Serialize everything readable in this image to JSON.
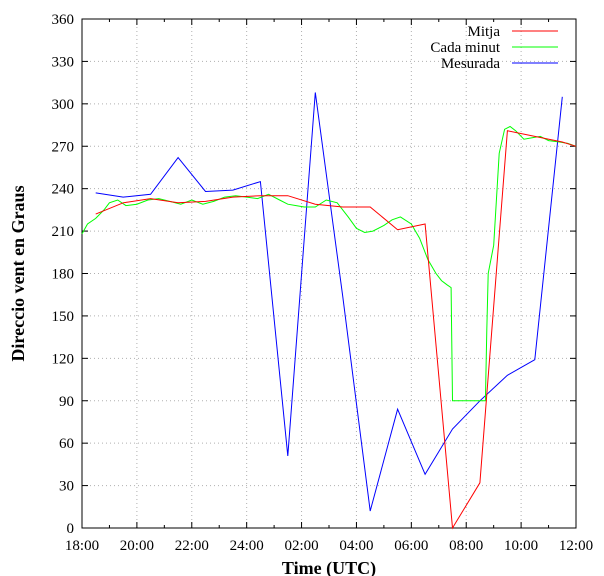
{
  "chart_data": {
    "type": "line",
    "title": "",
    "xlabel": "Time (UTC)",
    "ylabel": "Direccio vent en Graus",
    "x_tick_labels": [
      "18:00",
      "20:00",
      "22:00",
      "24:00",
      "02:00",
      "04:00",
      "06:00",
      "08:00",
      "10:00",
      "12:00"
    ],
    "y_ticks": [
      0,
      30,
      60,
      90,
      120,
      150,
      180,
      210,
      240,
      270,
      300,
      330,
      360
    ],
    "xlim_hours": [
      0,
      18
    ],
    "ylim": [
      0,
      360
    ],
    "grid": true,
    "legend_position": "top-right",
    "series": [
      {
        "name": "Mitja",
        "color": "#ff0000",
        "x": [
          0.5,
          1.5,
          2.5,
          3.5,
          4.5,
          5.5,
          6.5,
          7.5,
          8.5,
          9.5,
          10.5,
          11.5,
          12.5,
          13.5,
          14.5,
          15.5,
          16.5,
          17.5,
          18
        ],
        "y": [
          222,
          230,
          233,
          230,
          231,
          234,
          235,
          235,
          229,
          227,
          227,
          211,
          215,
          0,
          32,
          281,
          277,
          273,
          270
        ]
      },
      {
        "name": "Cada minut",
        "color": "#00ff00",
        "x": [
          0,
          0.2,
          0.5,
          0.8,
          1.0,
          1.3,
          1.6,
          2.0,
          2.4,
          2.8,
          3.2,
          3.6,
          4.0,
          4.4,
          4.8,
          5.2,
          5.6,
          6.0,
          6.4,
          6.8,
          7.2,
          7.5,
          7.8,
          8.1,
          8.5,
          8.9,
          9.3,
          9.7,
          10.0,
          10.3,
          10.6,
          11.0,
          11.3,
          11.6,
          12.0,
          12.3,
          12.6,
          12.9,
          13.1,
          13.3,
          13.45,
          13.5,
          13.55,
          14.0,
          14.5,
          14.7,
          14.75,
          14.8,
          15.0,
          15.2,
          15.4,
          15.6,
          15.8,
          16.1,
          16.4,
          16.7,
          17.0,
          17.4,
          17.7,
          18.0
        ],
        "y": [
          208,
          215,
          219,
          225,
          230,
          232,
          228,
          229,
          232,
          233,
          231,
          229,
          232,
          229,
          231,
          234,
          235,
          234,
          233,
          236,
          232,
          229,
          228,
          227,
          227,
          232,
          230,
          220,
          212,
          209,
          210,
          214,
          218,
          220,
          215,
          205,
          190,
          180,
          175,
          172,
          170,
          90,
          90,
          90,
          90,
          90,
          140,
          180,
          200,
          265,
          282,
          284,
          281,
          275,
          276,
          277,
          274,
          273,
          272,
          270
        ]
      },
      {
        "name": "Mesurada",
        "color": "#0000ff",
        "x": [
          0.5,
          1.5,
          2.5,
          3.5,
          4.5,
          5.5,
          6.5,
          7.5,
          8.5,
          9.5,
          10.5,
          11.5,
          12.5,
          13.5,
          14.5,
          15.5,
          16.5,
          17.5
        ],
        "y": [
          237,
          234,
          236,
          262,
          238,
          239,
          245,
          51,
          308,
          164,
          12,
          84,
          38,
          70,
          90,
          108,
          119,
          305
        ]
      }
    ]
  }
}
